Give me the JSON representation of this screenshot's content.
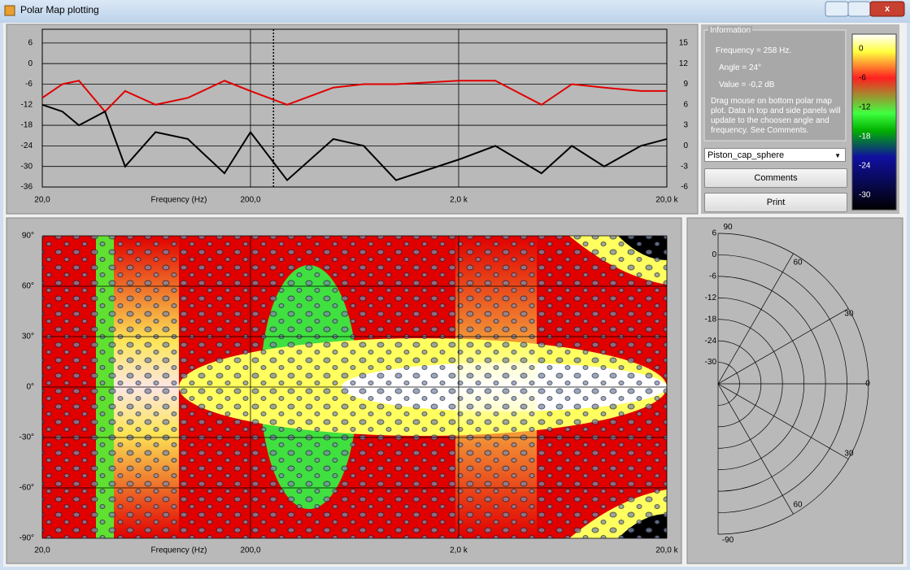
{
  "window": {
    "title": "Polar Map plotting"
  },
  "top_plot": {
    "type": "line",
    "xlabel": "Frequency (Hz)",
    "log_x": true,
    "xlim": [
      20,
      20000
    ],
    "xticks": [
      {
        "value": 20,
        "label": "20,0"
      },
      {
        "value": 200,
        "label": "200,0"
      },
      {
        "value": 2000,
        "label": "2,0 k"
      },
      {
        "value": 20000,
        "label": "20,0 k"
      }
    ],
    "ylim": [
      -36,
      10
    ],
    "yticks": [
      6,
      0,
      -6,
      -12,
      -18,
      -24,
      -30,
      -36
    ],
    "y2lim": [
      -6,
      17
    ],
    "y2ticks": [
      15,
      12,
      9,
      6,
      3,
      0,
      -3,
      -6
    ],
    "grid": true,
    "cursor_frequency": 258,
    "x": [
      20,
      25,
      30,
      40,
      50,
      70,
      100,
      150,
      200,
      300,
      500,
      700,
      1000,
      2000,
      3000,
      5000,
      7000,
      10000,
      15000,
      20000
    ],
    "series": [
      {
        "color": "#e00000",
        "values": [
          -10,
          -6,
          -5,
          -14,
          -8,
          -12,
          -10,
          -5,
          -8,
          -12,
          -7,
          -6,
          -6,
          -5,
          -5,
          -12,
          -6,
          -7,
          -8,
          -8
        ]
      },
      {
        "color": "#000000",
        "axis": "y2",
        "values": [
          6,
          5,
          3,
          5,
          -3,
          2,
          1,
          -4,
          2,
          -5,
          1,
          0,
          -5,
          -2,
          0,
          -4,
          0,
          -3,
          0,
          1
        ]
      }
    ]
  },
  "info": {
    "group_title": "Information",
    "frequency": "Frequency = 258 Hz.",
    "angle": "Angle = 24°",
    "value": "Value = -0,2 dB",
    "help": "Drag mouse on bottom polar map plot.  Data in top and side panels will update to the choosen angle and frequency.  See Comments."
  },
  "controls": {
    "dropdown": "Piston_cap_sphere",
    "comments_button": "Comments",
    "print_button": "Print"
  },
  "colorbar": {
    "clim": [
      -33,
      3
    ],
    "ticks": [
      0,
      -6,
      -12,
      -18,
      -24,
      -30
    ]
  },
  "polar_map": {
    "xlabel": "Frequency (Hz)",
    "log_x": true,
    "xlim": [
      20,
      20000
    ],
    "xticks": [
      {
        "value": 20,
        "label": "20,0"
      },
      {
        "value": 200,
        "label": "200,0"
      },
      {
        "value": 2000,
        "label": "2,0 k"
      },
      {
        "value": 20000,
        "label": "20,0 k"
      }
    ],
    "ylim": [
      -90,
      90
    ],
    "yticks": [
      {
        "value": 90,
        "label": "90°"
      },
      {
        "value": 60,
        "label": "60°"
      },
      {
        "value": 30,
        "label": "30°"
      },
      {
        "value": 0,
        "label": "0°"
      },
      {
        "value": -30,
        "label": "-30°"
      },
      {
        "value": -60,
        "label": "-60°"
      },
      {
        "value": -90,
        "label": "-90°"
      }
    ]
  },
  "polar_plot": {
    "rlim": [
      -36,
      6
    ],
    "rticks": [
      6,
      0,
      -6,
      -12,
      -18,
      -24,
      -30
    ],
    "angle_ticks": [
      {
        "value": 90,
        "label": "90"
      },
      {
        "value": 60,
        "label": "60"
      },
      {
        "value": 30,
        "label": "30"
      },
      {
        "value": 0,
        "label": "0"
      },
      {
        "value": -30,
        "label": "30"
      },
      {
        "value": -60,
        "label": "60"
      },
      {
        "value": -90,
        "label": "-90"
      }
    ]
  }
}
